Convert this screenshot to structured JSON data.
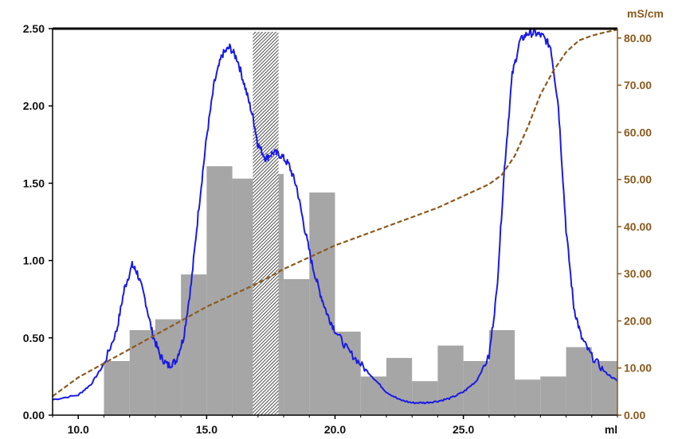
{
  "chart_data": {
    "type": "line",
    "x_axis": {
      "label": "ml",
      "range": [
        9,
        31
      ],
      "ticks": [
        10,
        15,
        20,
        25
      ],
      "tick_labels": [
        "10.0",
        "15.0",
        "20.0",
        "25.0"
      ]
    },
    "y_axis_left": {
      "range": [
        0,
        2.5
      ],
      "ticks": [
        0,
        0.5,
        1,
        1.5,
        2,
        2.5
      ],
      "tick_labels": [
        "0.00",
        "0.50",
        "1.00",
        "1.50",
        "2.00",
        "2.50"
      ]
    },
    "y_axis_right": {
      "label": "mS/cm",
      "range": [
        0,
        82
      ],
      "ticks": [
        0,
        10,
        20,
        30,
        40,
        50,
        60,
        70,
        80
      ],
      "tick_labels": [
        "0.00",
        "10.00",
        "20.00",
        "30.00",
        "40.00",
        "50.00",
        "60.00",
        "70.00",
        "80.00"
      ]
    },
    "series": [
      {
        "kind": "bars",
        "color": "#A6A6A6",
        "axis": "left",
        "bins": [
          {
            "x0": 11.0,
            "x1": 12.0,
            "value": 0.35
          },
          {
            "x0": 12.0,
            "x1": 13.0,
            "value": 0.55
          },
          {
            "x0": 13.0,
            "x1": 14.0,
            "value": 0.62
          },
          {
            "x0": 14.0,
            "x1": 15.0,
            "value": 0.91
          },
          {
            "x0": 15.0,
            "x1": 16.0,
            "value": 1.61
          },
          {
            "x0": 16.0,
            "x1": 17.0,
            "value": 1.53
          },
          {
            "x0": 17.0,
            "x1": 18.0,
            "value": 1.56
          },
          {
            "x0": 18.0,
            "x1": 19.0,
            "value": 0.88
          },
          {
            "x0": 19.0,
            "x1": 20.0,
            "value": 1.44
          },
          {
            "x0": 20.0,
            "x1": 21.0,
            "value": 0.54
          },
          {
            "x0": 21.0,
            "x1": 22.0,
            "value": 0.25
          },
          {
            "x0": 22.0,
            "x1": 23.0,
            "value": 0.37
          },
          {
            "x0": 23.0,
            "x1": 24.0,
            "value": 0.22
          },
          {
            "x0": 24.0,
            "x1": 25.0,
            "value": 0.45
          },
          {
            "x0": 25.0,
            "x1": 26.0,
            "value": 0.35
          },
          {
            "x0": 26.0,
            "x1": 27.0,
            "value": 0.55
          },
          {
            "x0": 27.0,
            "x1": 28.0,
            "value": 0.23
          },
          {
            "x0": 28.0,
            "x1": 29.0,
            "value": 0.25
          },
          {
            "x0": 29.0,
            "x1": 30.0,
            "value": 0.44
          },
          {
            "x0": 30.0,
            "x1": 31.0,
            "value": 0.35
          }
        ]
      },
      {
        "kind": "line",
        "color": "#1A1AE6",
        "axis": "left",
        "x": [
          9.0,
          10.0,
          10.5,
          11.0,
          11.5,
          11.8,
          12.1,
          12.3,
          12.6,
          12.9,
          13.2,
          13.5,
          13.8,
          14.1,
          14.4,
          14.7,
          15.0,
          15.3,
          15.6,
          15.9,
          16.2,
          16.5,
          16.8,
          17.0,
          17.3,
          17.6,
          17.9,
          18.2,
          18.5,
          18.8,
          19.1,
          19.4,
          19.7,
          20.0,
          20.5,
          21.0,
          21.5,
          22.0,
          22.5,
          23.0,
          23.5,
          24.0,
          24.5,
          25.0,
          25.5,
          26.0,
          26.3,
          26.6,
          26.9,
          27.2,
          27.5,
          27.8,
          28.1,
          28.4,
          28.7,
          29.0,
          29.3,
          29.6,
          30.0,
          30.5,
          31.0
        ],
        "y": [
          0.1,
          0.13,
          0.2,
          0.33,
          0.55,
          0.82,
          0.97,
          0.92,
          0.75,
          0.52,
          0.38,
          0.32,
          0.35,
          0.5,
          0.85,
          1.35,
          1.8,
          2.15,
          2.33,
          2.38,
          2.3,
          2.12,
          1.93,
          1.75,
          1.66,
          1.7,
          1.68,
          1.62,
          1.48,
          1.22,
          0.98,
          0.8,
          0.65,
          0.55,
          0.42,
          0.33,
          0.24,
          0.15,
          0.1,
          0.08,
          0.08,
          0.09,
          0.11,
          0.15,
          0.22,
          0.38,
          0.8,
          1.6,
          2.2,
          2.42,
          2.47,
          2.47,
          2.45,
          2.38,
          2.0,
          1.2,
          0.7,
          0.5,
          0.38,
          0.28,
          0.22
        ]
      },
      {
        "kind": "line",
        "style": "dashed",
        "color": "#8B5A1E",
        "axis": "right",
        "x": [
          9.0,
          10.0,
          11.0,
          12.0,
          13.0,
          14.0,
          15.0,
          16.0,
          17.0,
          18.0,
          19.0,
          20.0,
          21.0,
          22.0,
          23.0,
          24.0,
          25.0,
          26.0,
          26.5,
          27.0,
          27.5,
          28.0,
          28.5,
          29.0,
          29.5,
          30.0,
          30.5,
          31.0
        ],
        "y": [
          4.0,
          8.0,
          11.0,
          14.0,
          17.0,
          20.0,
          23.0,
          25.5,
          28.0,
          31.0,
          33.5,
          36.0,
          38.0,
          40.0,
          42.0,
          44.0,
          46.5,
          49.0,
          51.0,
          55.0,
          61.0,
          68.0,
          73.0,
          77.0,
          79.5,
          80.5,
          81.2,
          81.8
        ]
      }
    ],
    "highlight_band": {
      "x0": 16.8,
      "x1": 17.8
    }
  }
}
